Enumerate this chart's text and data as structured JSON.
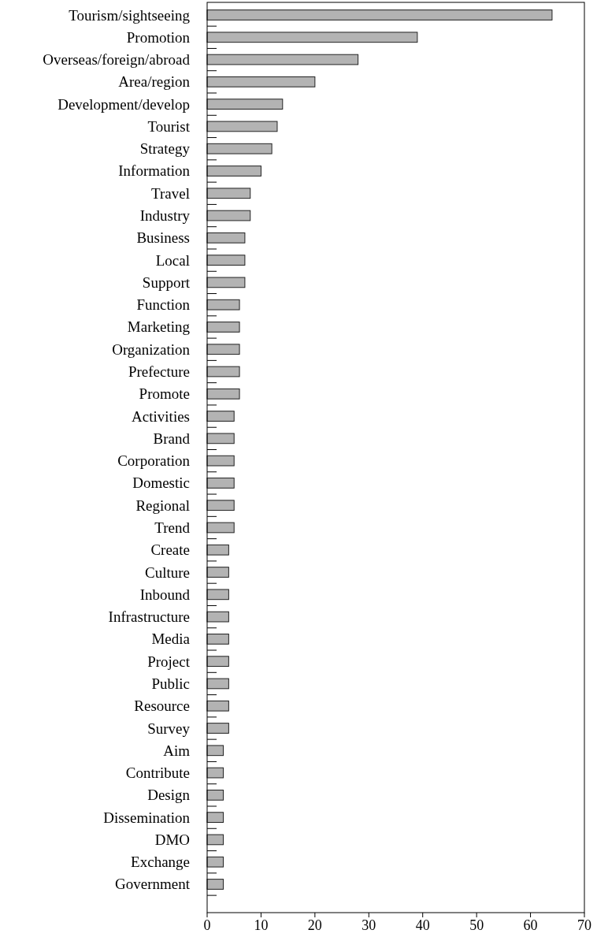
{
  "chart_data": {
    "type": "bar",
    "orientation": "horizontal",
    "categories": [
      "Tourism/sightseeing",
      "Promotion",
      "Overseas/foreign/abroad",
      "Area/region",
      "Development/develop",
      "Tourist",
      "Strategy",
      "Information",
      "Travel",
      "Industry",
      "Business",
      "Local",
      "Support",
      "Function",
      "Marketing",
      "Organization",
      "Prefecture",
      "Promote",
      "Activities",
      "Brand",
      "Corporation",
      "Domestic",
      "Regional",
      "Trend",
      "Create",
      "Culture",
      "Inbound",
      "Infrastructure",
      "Media",
      "Project",
      "Public",
      "Resource",
      "Survey",
      "Aim",
      "Contribute",
      "Design",
      "Dissemination",
      "DMO",
      "Exchange",
      "Government"
    ],
    "values": [
      64,
      39,
      28,
      20,
      14,
      13,
      12,
      10,
      8,
      8,
      7,
      7,
      7,
      6,
      6,
      6,
      6,
      6,
      5,
      5,
      5,
      5,
      5,
      5,
      4,
      4,
      4,
      4,
      4,
      4,
      4,
      4,
      4,
      3,
      3,
      3,
      3,
      3,
      3,
      3
    ],
    "color": "#b3b3b3",
    "xlim": [
      0,
      70
    ],
    "xticks": [
      0,
      10,
      20,
      30,
      40,
      50,
      60,
      70
    ],
    "grid": false
  }
}
